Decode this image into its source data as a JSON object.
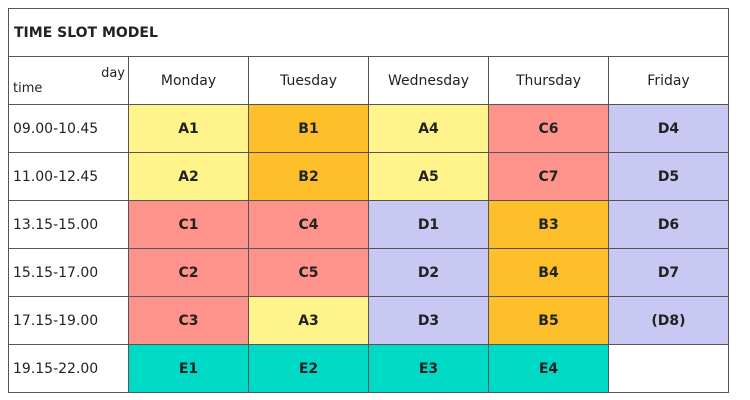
{
  "title": "TIME SLOT MODEL",
  "header": {
    "corner_day": "day",
    "corner_time": "time",
    "days": [
      "Monday",
      "Tuesday",
      "Wednesday",
      "Thursday",
      "Friday"
    ]
  },
  "colors": {
    "A": "#fff48c",
    "B": "#fdc02a",
    "C": "#fd938a",
    "D": "#c8c8f2",
    "E": "#00d9c6",
    "empty": "#ffffff"
  },
  "rows": [
    {
      "time": "09.00-10.45",
      "cells": [
        {
          "label": "A1",
          "group": "A"
        },
        {
          "label": "B1",
          "group": "B"
        },
        {
          "label": "A4",
          "group": "A"
        },
        {
          "label": "C6",
          "group": "C"
        },
        {
          "label": "D4",
          "group": "D"
        }
      ]
    },
    {
      "time": "11.00-12.45",
      "cells": [
        {
          "label": "A2",
          "group": "A"
        },
        {
          "label": "B2",
          "group": "B"
        },
        {
          "label": "A5",
          "group": "A"
        },
        {
          "label": "C7",
          "group": "C"
        },
        {
          "label": "D5",
          "group": "D"
        }
      ]
    },
    {
      "time": "13.15-15.00",
      "cells": [
        {
          "label": "C1",
          "group": "C"
        },
        {
          "label": "C4",
          "group": "C"
        },
        {
          "label": "D1",
          "group": "D"
        },
        {
          "label": "B3",
          "group": "B"
        },
        {
          "label": "D6",
          "group": "D"
        }
      ]
    },
    {
      "time": "15.15-17.00",
      "cells": [
        {
          "label": "C2",
          "group": "C"
        },
        {
          "label": "C5",
          "group": "C"
        },
        {
          "label": "D2",
          "group": "D"
        },
        {
          "label": "B4",
          "group": "B"
        },
        {
          "label": "D7",
          "group": "D"
        }
      ]
    },
    {
      "time": "17.15-19.00",
      "cells": [
        {
          "label": "C3",
          "group": "C"
        },
        {
          "label": "A3",
          "group": "A"
        },
        {
          "label": "D3",
          "group": "D"
        },
        {
          "label": "B5",
          "group": "B"
        },
        {
          "label": "(D8)",
          "group": "D"
        }
      ]
    },
    {
      "time": "19.15-22.00",
      "cells": [
        {
          "label": "E1",
          "group": "E"
        },
        {
          "label": "E2",
          "group": "E"
        },
        {
          "label": "E3",
          "group": "E"
        },
        {
          "label": "E4",
          "group": "E"
        },
        {
          "label": "",
          "group": "empty"
        }
      ]
    }
  ]
}
